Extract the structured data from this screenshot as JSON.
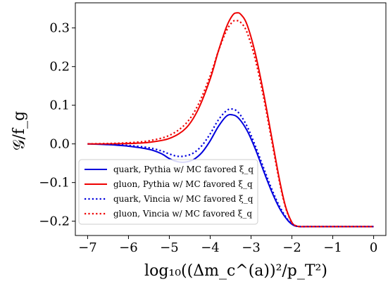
{
  "chart_data": {
    "type": "line",
    "xlabel": "log₁₀((Δm_c^(a))²/p_T²)",
    "ylabel": "𝒢/f_g",
    "xlim": [
      -7.3,
      0.3
    ],
    "ylim": [
      -0.237,
      0.365
    ],
    "xticks": [
      -7,
      -6,
      -5,
      -4,
      -3,
      -2,
      -1,
      0
    ],
    "xtick_labels": [
      "−7",
      "−6",
      "−5",
      "−4",
      "−3",
      "−2",
      "−1",
      "0"
    ],
    "yticks": [
      -0.2,
      -0.1,
      0.0,
      0.1,
      0.2,
      0.3
    ],
    "ytick_labels": [
      "−0.2",
      "−0.1",
      "0.0",
      "0.1",
      "0.2",
      "0.3"
    ],
    "grid": false,
    "legend_position": "lower-left",
    "series": [
      {
        "name": "quark, Pythia w/ MC favored ξ_q",
        "color": "#0000dd",
        "style": "solid",
        "x": [
          -7.0,
          -6.5,
          -6.0,
          -5.5,
          -5.2,
          -5.0,
          -4.8,
          -4.6,
          -4.4,
          -4.2,
          -4.0,
          -3.8,
          -3.6,
          -3.45,
          -3.3,
          -3.1,
          -2.9,
          -2.7,
          -2.5,
          -2.3,
          -2.1,
          -1.95,
          -1.8,
          -1.6,
          -1.0,
          -0.5,
          0.0
        ],
        "y": [
          0.0,
          -0.002,
          -0.006,
          -0.014,
          -0.025,
          -0.038,
          -0.046,
          -0.047,
          -0.04,
          -0.022,
          0.008,
          0.045,
          0.072,
          0.075,
          0.066,
          0.035,
          -0.012,
          -0.068,
          -0.122,
          -0.167,
          -0.198,
          -0.211,
          -0.214,
          -0.214,
          -0.214,
          -0.214,
          -0.214
        ]
      },
      {
        "name": "gluon, Pythia w/ MC favored ξ_q",
        "color": "#ee0000",
        "style": "solid",
        "x": [
          -7.0,
          -6.5,
          -6.0,
          -5.5,
          -5.0,
          -4.6,
          -4.3,
          -4.0,
          -3.8,
          -3.6,
          -3.45,
          -3.35,
          -3.25,
          -3.1,
          -2.9,
          -2.7,
          -2.5,
          -2.3,
          -2.15,
          -2.0,
          -1.9,
          -1.8,
          -1.6,
          -1.0,
          -0.5,
          0.0
        ],
        "y": [
          0.0,
          0.0,
          0.001,
          0.004,
          0.014,
          0.04,
          0.088,
          0.168,
          0.24,
          0.303,
          0.333,
          0.339,
          0.335,
          0.309,
          0.236,
          0.135,
          0.02,
          -0.095,
          -0.164,
          -0.203,
          -0.212,
          -0.214,
          -0.214,
          -0.214,
          -0.214,
          -0.214
        ]
      },
      {
        "name": "quark, Vincia w/ MC favored ξ_q",
        "color": "#0000dd",
        "style": "dotted",
        "x": [
          -7.0,
          -6.5,
          -6.0,
          -5.5,
          -5.2,
          -5.0,
          -4.8,
          -4.6,
          -4.4,
          -4.2,
          -4.0,
          -3.8,
          -3.6,
          -3.45,
          -3.3,
          -3.1,
          -2.9,
          -2.7,
          -2.5,
          -2.3,
          -2.1,
          -1.95,
          -1.8,
          -1.6,
          -1.0,
          -0.5,
          0.0
        ],
        "y": [
          0.0,
          -0.001,
          -0.004,
          -0.01,
          -0.018,
          -0.026,
          -0.032,
          -0.031,
          -0.023,
          -0.004,
          0.026,
          0.062,
          0.086,
          0.09,
          0.08,
          0.046,
          -0.004,
          -0.06,
          -0.115,
          -0.162,
          -0.196,
          -0.21,
          -0.214,
          -0.214,
          -0.214,
          -0.214,
          -0.214
        ]
      },
      {
        "name": "gluon, Vincia w/ MC favored ξ_q",
        "color": "#ee0000",
        "style": "dotted",
        "x": [
          -7.0,
          -6.5,
          -6.0,
          -5.5,
          -5.0,
          -4.6,
          -4.3,
          -4.0,
          -3.8,
          -3.6,
          -3.45,
          -3.35,
          -3.25,
          -3.1,
          -2.9,
          -2.7,
          -2.5,
          -2.3,
          -2.15,
          -2.0,
          -1.9,
          -1.8,
          -1.6,
          -1.0,
          -0.5,
          0.0
        ],
        "y": [
          0.0,
          0.001,
          0.003,
          0.008,
          0.022,
          0.052,
          0.1,
          0.176,
          0.24,
          0.293,
          0.316,
          0.319,
          0.314,
          0.289,
          0.22,
          0.124,
          0.012,
          -0.1,
          -0.166,
          -0.204,
          -0.212,
          -0.214,
          -0.214,
          -0.214,
          -0.214,
          -0.214
        ]
      }
    ]
  }
}
